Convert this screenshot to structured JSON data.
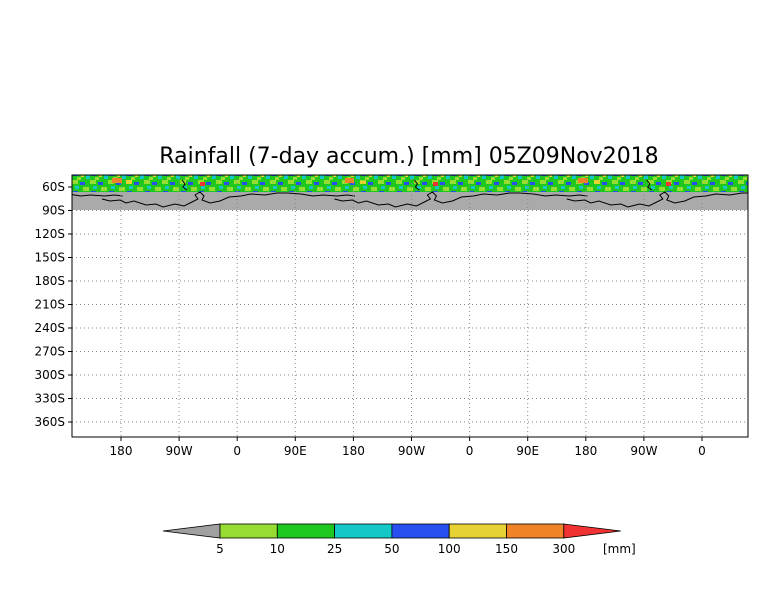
{
  "title": "Rainfall (7-day accum.) [mm] 05Z09Nov2018",
  "map": {
    "lat_ticks": [
      "60S",
      "90S",
      "120S",
      "150S",
      "180S",
      "210S",
      "240S",
      "270S",
      "300S",
      "330S",
      "360S"
    ],
    "lon_ticks": [
      "180",
      "90W",
      "0",
      "90E",
      "180",
      "90W",
      "0",
      "90E",
      "180",
      "90W",
      "0"
    ],
    "land_color": "#aaaaaa",
    "coast_color": "#000000",
    "grid": true
  },
  "colorbar": {
    "unit": "[mm]",
    "labels": [
      "5",
      "10",
      "25",
      "50",
      "100",
      "150",
      "300"
    ],
    "colors": [
      "#a0a0a0",
      "#96dc32",
      "#1ec81e",
      "#14c8c8",
      "#2850f0",
      "#e6d232",
      "#f08228",
      "#f03232"
    ]
  }
}
